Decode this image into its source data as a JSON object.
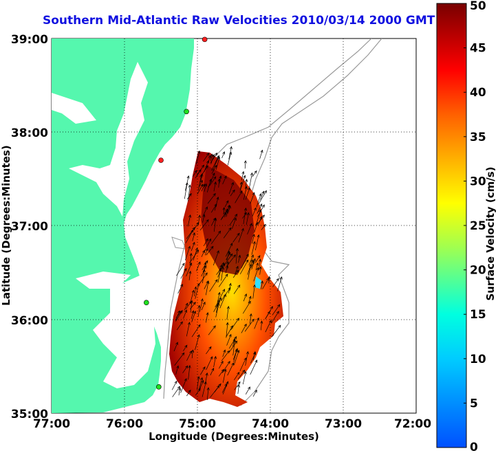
{
  "title": "Southern Mid-Atlantic Raw Velocities 2010/03/14 2000 GMT",
  "x_axis": {
    "label": "Longitude (Degrees:Minutes)",
    "ticks": [
      "77:00",
      "76:00",
      "75:00",
      "74:00",
      "73:00",
      "72:00"
    ]
  },
  "y_axis": {
    "label": "Latitude (Degrees:Minutes)",
    "ticks": [
      "39:00",
      "38:00",
      "37:00",
      "36:00",
      "35:00"
    ]
  },
  "colorbar": {
    "label": "Surface Velocity (cm/s)",
    "ticks": [
      "0",
      "5",
      "10",
      "15",
      "20",
      "25",
      "30",
      "35",
      "40",
      "45",
      "50"
    ],
    "min": 0,
    "max": 50
  },
  "colors": {
    "land": "#55f7ae",
    "title": "#1010e0"
  },
  "map_extent": {
    "lon": [
      -77,
      -72
    ],
    "lat": [
      35,
      39
    ]
  },
  "radar_sites": [
    {
      "lon": -74.9,
      "lat": 38.99,
      "status": "red"
    },
    {
      "lon": -75.15,
      "lat": 38.22,
      "status": "green"
    },
    {
      "lon": -75.5,
      "lat": 37.7,
      "status": "red"
    },
    {
      "lon": -75.7,
      "lat": 36.18,
      "status": "green"
    },
    {
      "lon": -75.53,
      "lat": 35.28,
      "status": "green"
    }
  ]
}
